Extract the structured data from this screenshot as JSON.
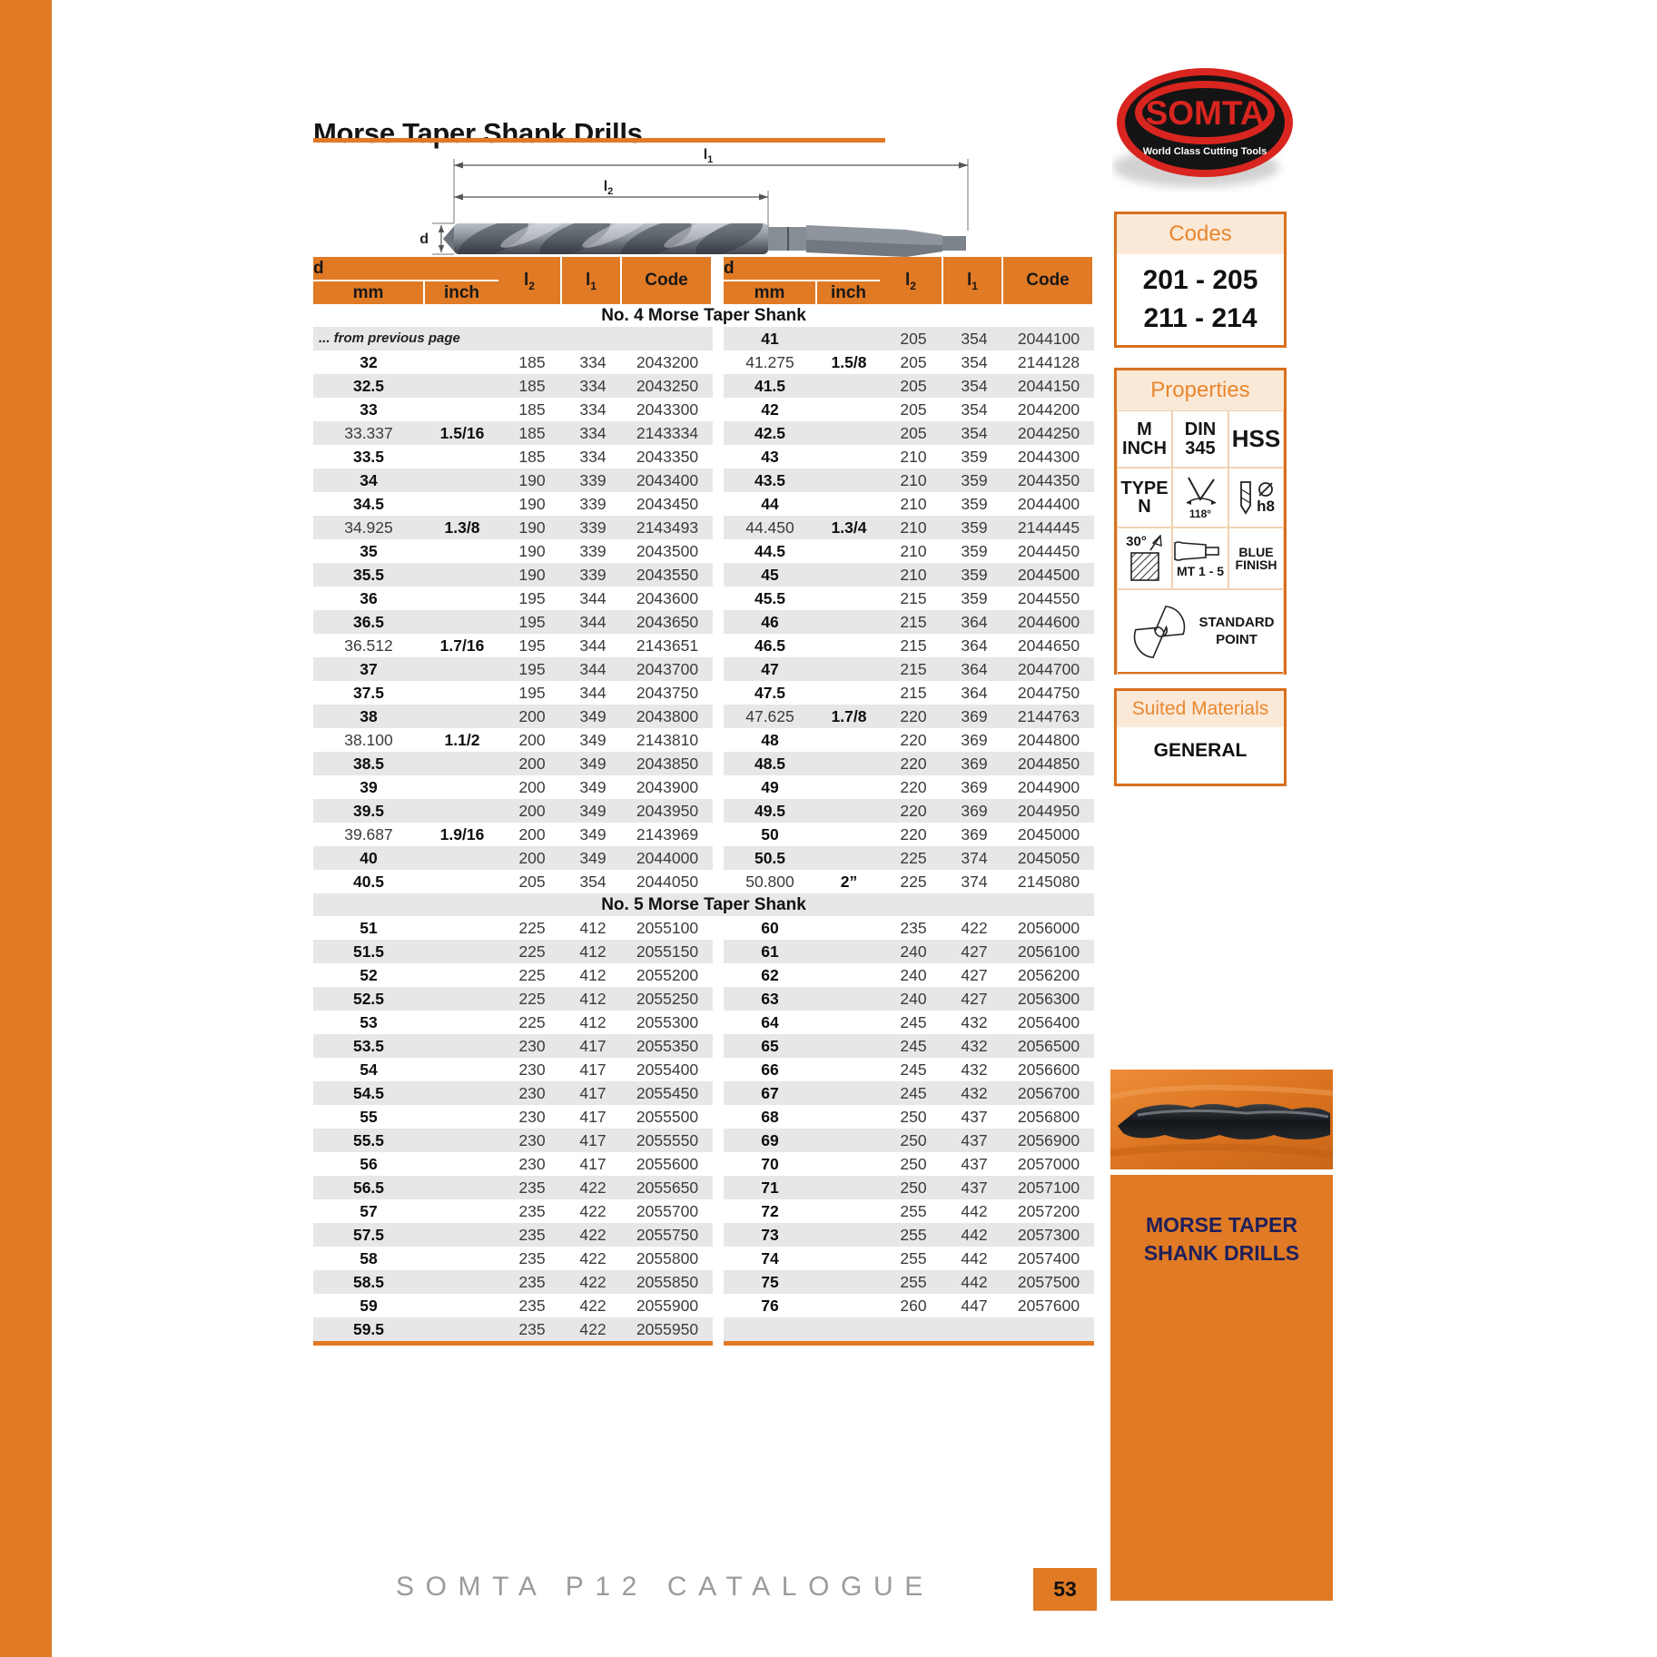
{
  "page": {
    "title": "Morse Taper Shank Drills",
    "footer": "SOMTA P12 CATALOGUE",
    "page_number": "53"
  },
  "logo": {
    "name": "SOMTA",
    "tagline": "World Class Cutting Tools"
  },
  "diagram": {
    "l1": {
      "base": "l",
      "sub": "1"
    },
    "l2": {
      "base": "l",
      "sub": "2"
    },
    "d": "d"
  },
  "sidebar": {
    "codes": {
      "title": "Codes",
      "lines": [
        "201 - 205",
        "211 - 214"
      ]
    },
    "properties": {
      "title": "Properties",
      "cell_m": "M\nINCH",
      "cell_din": "DIN\n345",
      "cell_hss": "HSS",
      "cell_type": "TYPE\nN",
      "angle": "118°",
      "h8": "h8",
      "deg30": "30°",
      "mt": "MT 1 - 5",
      "blue": "BLUE\nFINISH",
      "std": "STANDARD\nPOINT"
    },
    "suited": {
      "title": "Suited Materials",
      "value": "GENERAL"
    }
  },
  "panel": {
    "caption": "MORSE TAPER\nSHANK DRILLS"
  },
  "colors": {
    "accent_orange": "#E07A25",
    "stripe_gray": "#E7E7E7",
    "peach": "#FBE9D8",
    "logo_red": "#D8251F",
    "caption_navy": "#20205A"
  },
  "table": {
    "headers": {
      "d": "d",
      "mm": "mm",
      "inch": "inch",
      "l2": {
        "base": "l",
        "sub": "2"
      },
      "l1": {
        "base": "l",
        "sub": "1"
      },
      "code": "Code"
    },
    "sections": [
      {
        "title": "No. 4 Morse Taper Shank",
        "left": [
          [
            "... from previous page"
          ],
          [
            "32",
            "",
            "185",
            "334",
            "2043200"
          ],
          [
            "32.5",
            "",
            "185",
            "334",
            "2043250"
          ],
          [
            "33",
            "",
            "185",
            "334",
            "2043300"
          ],
          [
            "33.337",
            "1.5/16",
            "185",
            "334",
            "2143334"
          ],
          [
            "33.5",
            "",
            "185",
            "334",
            "2043350"
          ],
          [
            "34",
            "",
            "190",
            "339",
            "2043400"
          ],
          [
            "34.5",
            "",
            "190",
            "339",
            "2043450"
          ],
          [
            "34.925",
            "1.3/8",
            "190",
            "339",
            "2143493"
          ],
          [
            "35",
            "",
            "190",
            "339",
            "2043500"
          ],
          [
            "35.5",
            "",
            "190",
            "339",
            "2043550"
          ],
          [
            "36",
            "",
            "195",
            "344",
            "2043600"
          ],
          [
            "36.5",
            "",
            "195",
            "344",
            "2043650"
          ],
          [
            "36.512",
            "1.7/16",
            "195",
            "344",
            "2143651"
          ],
          [
            "37",
            "",
            "195",
            "344",
            "2043700"
          ],
          [
            "37.5",
            "",
            "195",
            "344",
            "2043750"
          ],
          [
            "38",
            "",
            "200",
            "349",
            "2043800"
          ],
          [
            "38.100",
            "1.1/2",
            "200",
            "349",
            "2143810"
          ],
          [
            "38.5",
            "",
            "200",
            "349",
            "2043850"
          ],
          [
            "39",
            "",
            "200",
            "349",
            "2043900"
          ],
          [
            "39.5",
            "",
            "200",
            "349",
            "2043950"
          ],
          [
            "39.687",
            "1.9/16",
            "200",
            "349",
            "2143969"
          ],
          [
            "40",
            "",
            "200",
            "349",
            "2044000"
          ],
          [
            "40.5",
            "",
            "205",
            "354",
            "2044050"
          ]
        ],
        "right": [
          [
            "41",
            "",
            "205",
            "354",
            "2044100"
          ],
          [
            "41.275",
            "1.5/8",
            "205",
            "354",
            "2144128"
          ],
          [
            "41.5",
            "",
            "205",
            "354",
            "2044150"
          ],
          [
            "42",
            "",
            "205",
            "354",
            "2044200"
          ],
          [
            "42.5",
            "",
            "205",
            "354",
            "2044250"
          ],
          [
            "43",
            "",
            "210",
            "359",
            "2044300"
          ],
          [
            "43.5",
            "",
            "210",
            "359",
            "2044350"
          ],
          [
            "44",
            "",
            "210",
            "359",
            "2044400"
          ],
          [
            "44.450",
            "1.3/4",
            "210",
            "359",
            "2144445"
          ],
          [
            "44.5",
            "",
            "210",
            "359",
            "2044450"
          ],
          [
            "45",
            "",
            "210",
            "359",
            "2044500"
          ],
          [
            "45.5",
            "",
            "215",
            "359",
            "2044550"
          ],
          [
            "46",
            "",
            "215",
            "364",
            "2044600"
          ],
          [
            "46.5",
            "",
            "215",
            "364",
            "2044650"
          ],
          [
            "47",
            "",
            "215",
            "364",
            "2044700"
          ],
          [
            "47.5",
            "",
            "215",
            "364",
            "2044750"
          ],
          [
            "47.625",
            "1.7/8",
            "220",
            "369",
            "2144763"
          ],
          [
            "48",
            "",
            "220",
            "369",
            "2044800"
          ],
          [
            "48.5",
            "",
            "220",
            "369",
            "2044850"
          ],
          [
            "49",
            "",
            "220",
            "369",
            "2044900"
          ],
          [
            "49.5",
            "",
            "220",
            "369",
            "2044950"
          ],
          [
            "50",
            "",
            "220",
            "369",
            "2045000"
          ],
          [
            "50.5",
            "",
            "225",
            "374",
            "2045050"
          ],
          [
            "50.800",
            "2”",
            "225",
            "374",
            "2145080"
          ]
        ]
      },
      {
        "title": "No. 5 Morse Taper Shank",
        "left": [
          [
            "51",
            "",
            "225",
            "412",
            "2055100"
          ],
          [
            "51.5",
            "",
            "225",
            "412",
            "2055150"
          ],
          [
            "52",
            "",
            "225",
            "412",
            "2055200"
          ],
          [
            "52.5",
            "",
            "225",
            "412",
            "2055250"
          ],
          [
            "53",
            "",
            "225",
            "412",
            "2055300"
          ],
          [
            "53.5",
            "",
            "230",
            "417",
            "2055350"
          ],
          [
            "54",
            "",
            "230",
            "417",
            "2055400"
          ],
          [
            "54.5",
            "",
            "230",
            "417",
            "2055450"
          ],
          [
            "55",
            "",
            "230",
            "417",
            "2055500"
          ],
          [
            "55.5",
            "",
            "230",
            "417",
            "2055550"
          ],
          [
            "56",
            "",
            "230",
            "417",
            "2055600"
          ],
          [
            "56.5",
            "",
            "235",
            "422",
            "2055650"
          ],
          [
            "57",
            "",
            "235",
            "422",
            "2055700"
          ],
          [
            "57.5",
            "",
            "235",
            "422",
            "2055750"
          ],
          [
            "58",
            "",
            "235",
            "422",
            "2055800"
          ],
          [
            "58.5",
            "",
            "235",
            "422",
            "2055850"
          ],
          [
            "59",
            "",
            "235",
            "422",
            "2055900"
          ],
          [
            "59.5",
            "",
            "235",
            "422",
            "2055950"
          ]
        ],
        "right": [
          [
            "60",
            "",
            "235",
            "422",
            "2056000"
          ],
          [
            "61",
            "",
            "240",
            "427",
            "2056100"
          ],
          [
            "62",
            "",
            "240",
            "427",
            "2056200"
          ],
          [
            "63",
            "",
            "240",
            "427",
            "2056300"
          ],
          [
            "64",
            "",
            "245",
            "432",
            "2056400"
          ],
          [
            "65",
            "",
            "245",
            "432",
            "2056500"
          ],
          [
            "66",
            "",
            "245",
            "432",
            "2056600"
          ],
          [
            "67",
            "",
            "245",
            "432",
            "2056700"
          ],
          [
            "68",
            "",
            "250",
            "437",
            "2056800"
          ],
          [
            "69",
            "",
            "250",
            "437",
            "2056900"
          ],
          [
            "70",
            "",
            "250",
            "437",
            "2057000"
          ],
          [
            "71",
            "",
            "250",
            "437",
            "2057100"
          ],
          [
            "72",
            "",
            "255",
            "442",
            "2057200"
          ],
          [
            "73",
            "",
            "255",
            "442",
            "2057300"
          ],
          [
            "74",
            "",
            "255",
            "442",
            "2057400"
          ],
          [
            "75",
            "",
            "255",
            "442",
            "2057500"
          ],
          [
            "76",
            "",
            "260",
            "447",
            "2057600"
          ],
          [
            "",
            "",
            "",
            "",
            ""
          ]
        ]
      }
    ]
  }
}
